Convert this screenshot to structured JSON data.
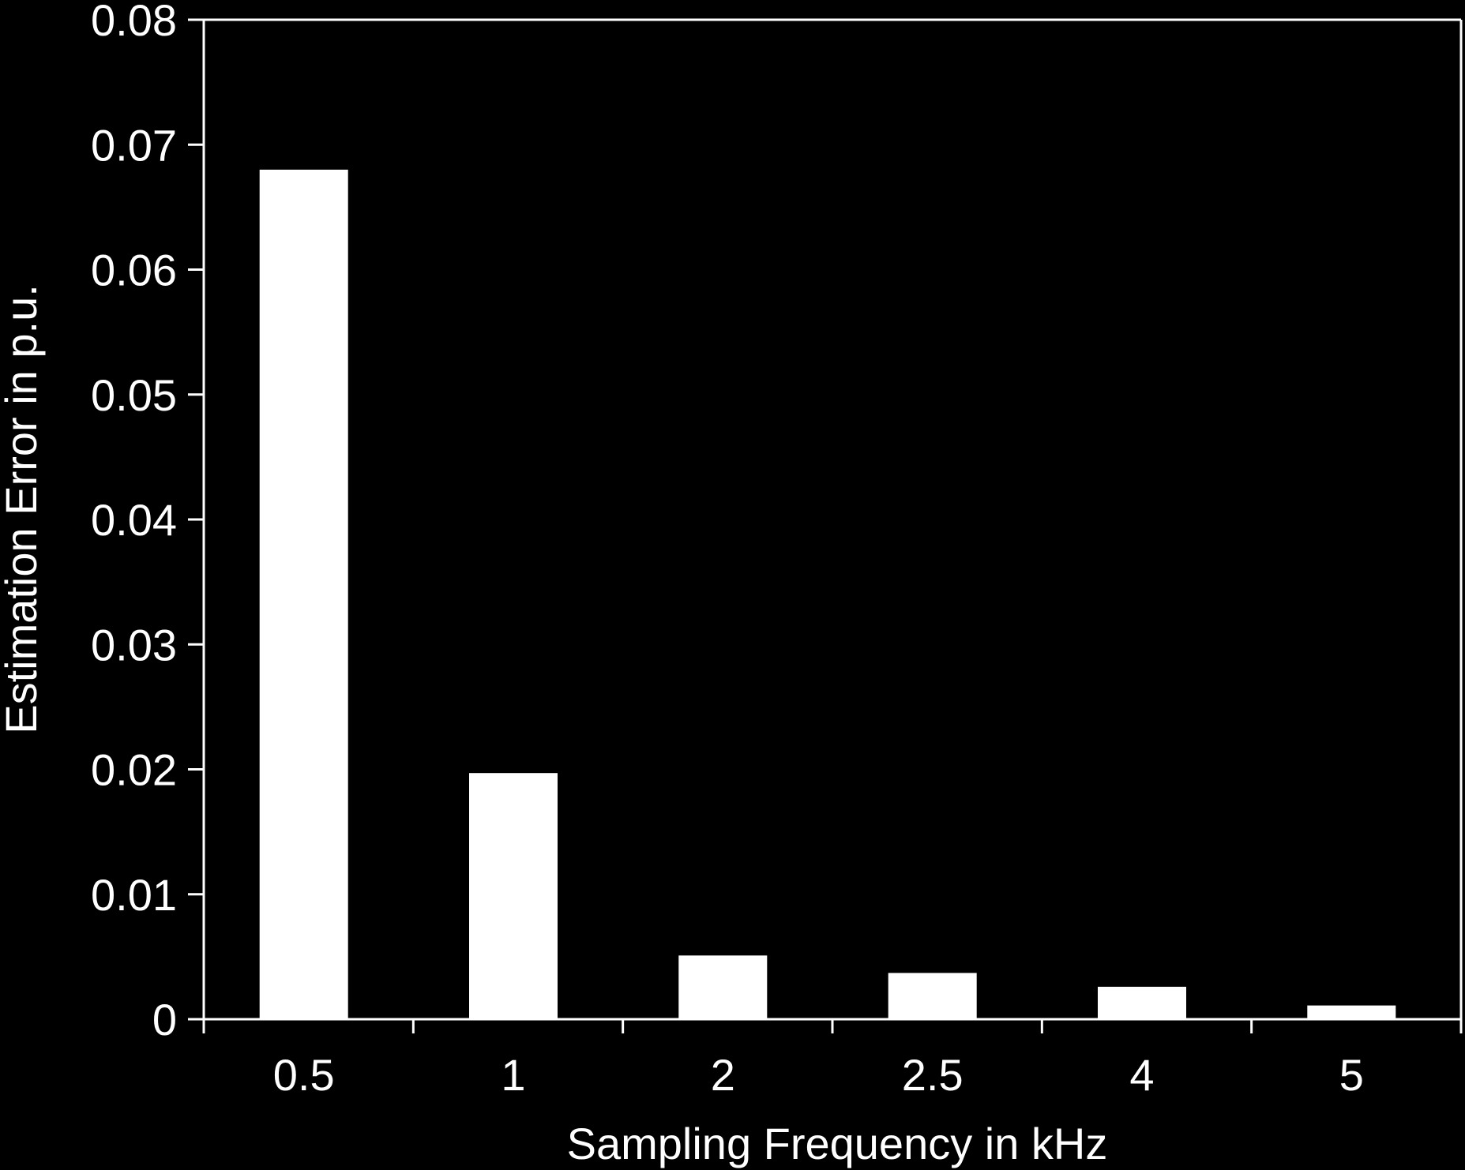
{
  "colors": {
    "background": "#000000",
    "foreground": "#ffffff",
    "bar_fill": "#ffffff"
  },
  "chart_data": {
    "type": "bar",
    "categories": [
      "0.5",
      "1",
      "2",
      "2.5",
      "4",
      "5"
    ],
    "values": [
      0.068,
      0.0197,
      0.0051,
      0.0037,
      0.0026,
      0.0011
    ],
    "title": "",
    "xlabel": "Sampling Frequency  in kHz",
    "ylabel": "Estimation Error in p.u.",
    "ylim": [
      0,
      0.08
    ],
    "yticks": [
      "0",
      "0.01",
      "0.02",
      "0.03",
      "0.04",
      "0.05",
      "0.06",
      "0.07",
      "0.08"
    ],
    "grid": false,
    "legend": "none"
  }
}
